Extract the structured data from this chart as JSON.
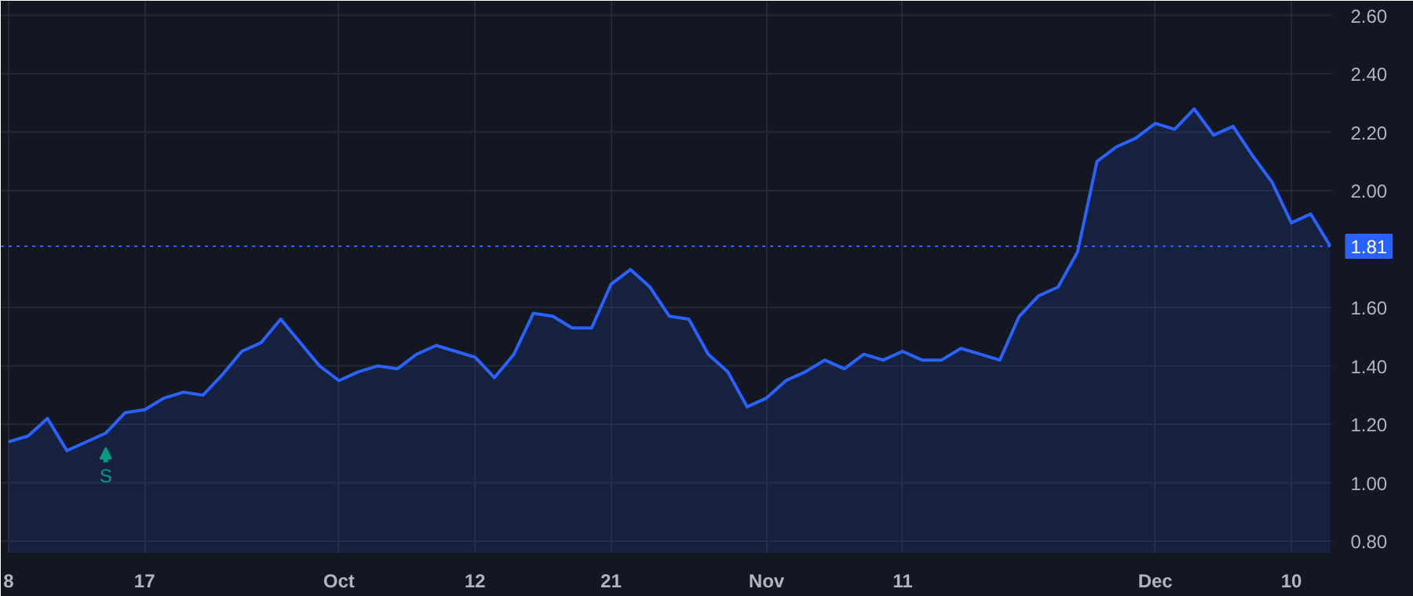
{
  "chart_data": {
    "type": "area",
    "categories": [
      "8",
      null,
      null,
      null,
      null,
      null,
      null,
      "17",
      null,
      null,
      null,
      null,
      null,
      null,
      null,
      null,
      null,
      "Oct",
      null,
      null,
      null,
      null,
      null,
      null,
      "12",
      null,
      null,
      null,
      null,
      null,
      null,
      "21",
      null,
      null,
      null,
      null,
      null,
      null,
      null,
      "Nov",
      null,
      null,
      null,
      null,
      null,
      null,
      "11",
      null,
      null,
      null,
      null,
      null,
      null,
      null,
      null,
      null,
      null,
      null,
      null,
      "Dec",
      null,
      null,
      null,
      null,
      null,
      null,
      "10",
      null,
      null
    ],
    "series": [
      {
        "color": "#2962ff",
        "values": [
          1.14,
          1.16,
          1.22,
          1.11,
          1.14,
          1.17,
          1.24,
          1.25,
          1.29,
          1.31,
          1.3,
          1.37,
          1.45,
          1.48,
          1.56,
          1.48,
          1.4,
          1.35,
          1.38,
          1.4,
          1.39,
          1.44,
          1.47,
          1.45,
          1.43,
          1.36,
          1.44,
          1.58,
          1.57,
          1.53,
          1.53,
          1.68,
          1.73,
          1.67,
          1.57,
          1.56,
          1.44,
          1.38,
          1.26,
          1.29,
          1.35,
          1.38,
          1.42,
          1.39,
          1.44,
          1.42,
          1.45,
          1.42,
          1.42,
          1.46,
          1.44,
          1.42,
          1.57,
          1.64,
          1.67,
          1.79,
          2.1,
          2.15,
          2.18,
          2.23,
          2.21,
          2.28,
          2.19,
          2.22,
          2.12,
          2.03,
          1.89,
          1.92,
          1.81
        ]
      }
    ],
    "ylim": [
      0.76,
      2.65
    ],
    "yticks": [
      {
        "value": 0.8,
        "label": "0.80"
      },
      {
        "value": 1.0,
        "label": "1.00"
      },
      {
        "value": 1.2,
        "label": "1.20"
      },
      {
        "value": 1.4,
        "label": "1.40"
      },
      {
        "value": 1.6,
        "label": "1.60"
      },
      {
        "value": 2.0,
        "label": "2.00"
      },
      {
        "value": 2.2,
        "label": "2.20"
      },
      {
        "value": 2.4,
        "label": "2.40"
      },
      {
        "value": 2.6,
        "label": "2.60"
      }
    ],
    "ref_lines": [
      {
        "axis": "y",
        "value": 1.81,
        "label": "1.81",
        "color": "#2962ff",
        "line_style": "dotted"
      }
    ],
    "annotations": [
      "S"
    ],
    "grid": true
  }
}
